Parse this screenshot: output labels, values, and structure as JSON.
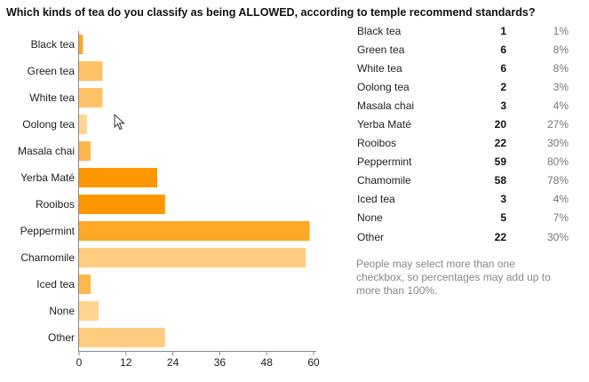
{
  "title": "Which kinds of tea do you classify as being ALLOWED, according to temple recommend standards?",
  "note": "People may select more than one checkbox, so percentages may add up to more than 100%.",
  "chart_data": {
    "type": "bar",
    "orientation": "horizontal",
    "title": "Which kinds of tea do you classify as being ALLOWED, according to temple recommend standards?",
    "categories": [
      "Black tea",
      "Green tea",
      "White tea",
      "Oolong tea",
      "Masala chai",
      "Yerba Maté",
      "Rooibos",
      "Peppermint",
      "Chamomile",
      "Iced tea",
      "None",
      "Other"
    ],
    "values": [
      1,
      6,
      6,
      2,
      3,
      20,
      22,
      59,
      58,
      3,
      5,
      22
    ],
    "percentages": [
      "1%",
      "8%",
      "8%",
      "3%",
      "4%",
      "27%",
      "30%",
      "80%",
      "78%",
      "4%",
      "7%",
      "30%"
    ],
    "bar_colors": [
      "#ffa726",
      "#ffc266",
      "#ffc266",
      "#ffd591",
      "#ffb74d",
      "#ff9800",
      "#ff9800",
      "#ffa726",
      "#ffcc80",
      "#ffb74d",
      "#ffd591",
      "#ffcc80"
    ],
    "xticks": [
      0,
      12,
      24,
      36,
      48,
      60
    ],
    "xlim": [
      0,
      60
    ],
    "grid": false
  }
}
